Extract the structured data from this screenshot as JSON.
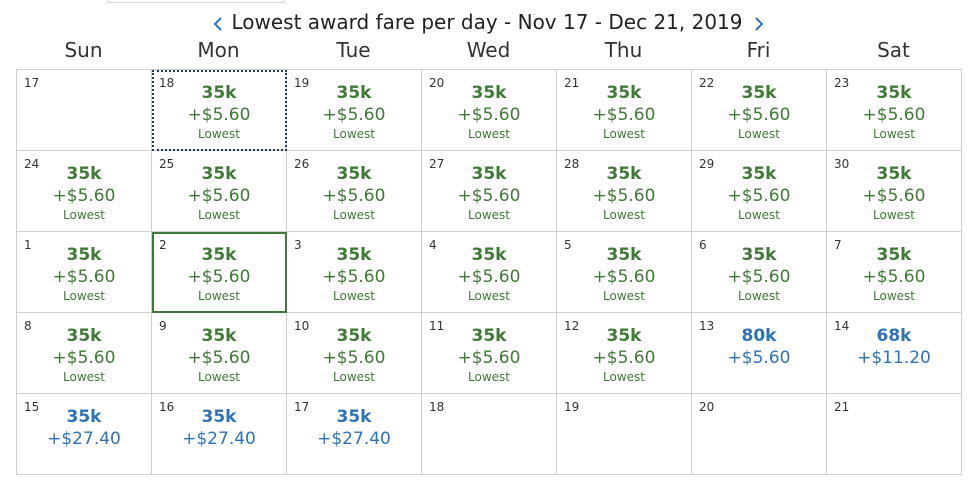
{
  "header": {
    "title": "Lowest award fare per day - Nov 17 - Dec 21, 2019",
    "prev_icon": "chevron-left-icon",
    "next_icon": "chevron-right-icon",
    "accent_color": "#2f73b6"
  },
  "weekdays": [
    "Sun",
    "Mon",
    "Tue",
    "Wed",
    "Thu",
    "Fri",
    "Sat"
  ],
  "colors": {
    "lowest": "#3f7a36",
    "regular": "#2f73b6",
    "selected_outline": "#3d7a3a",
    "focus_outline": "#1d3a66"
  },
  "calendar": {
    "weeks": [
      [
        {
          "day": "17"
        },
        {
          "day": "18",
          "miles": "35k",
          "tax": "+$5.60",
          "tag": "Lowest",
          "state": "focused"
        },
        {
          "day": "19",
          "miles": "35k",
          "tax": "+$5.60",
          "tag": "Lowest"
        },
        {
          "day": "20",
          "miles": "35k",
          "tax": "+$5.60",
          "tag": "Lowest"
        },
        {
          "day": "21",
          "miles": "35k",
          "tax": "+$5.60",
          "tag": "Lowest"
        },
        {
          "day": "22",
          "miles": "35k",
          "tax": "+$5.60",
          "tag": "Lowest"
        },
        {
          "day": "23",
          "miles": "35k",
          "tax": "+$5.60",
          "tag": "Lowest"
        }
      ],
      [
        {
          "day": "24",
          "miles": "35k",
          "tax": "+$5.60",
          "tag": "Lowest"
        },
        {
          "day": "25",
          "miles": "35k",
          "tax": "+$5.60",
          "tag": "Lowest"
        },
        {
          "day": "26",
          "miles": "35k",
          "tax": "+$5.60",
          "tag": "Lowest"
        },
        {
          "day": "27",
          "miles": "35k",
          "tax": "+$5.60",
          "tag": "Lowest"
        },
        {
          "day": "28",
          "miles": "35k",
          "tax": "+$5.60",
          "tag": "Lowest"
        },
        {
          "day": "29",
          "miles": "35k",
          "tax": "+$5.60",
          "tag": "Lowest"
        },
        {
          "day": "30",
          "miles": "35k",
          "tax": "+$5.60",
          "tag": "Lowest"
        }
      ],
      [
        {
          "day": "1",
          "miles": "35k",
          "tax": "+$5.60",
          "tag": "Lowest"
        },
        {
          "day": "2",
          "miles": "35k",
          "tax": "+$5.60",
          "tag": "Lowest",
          "state": "selected"
        },
        {
          "day": "3",
          "miles": "35k",
          "tax": "+$5.60",
          "tag": "Lowest"
        },
        {
          "day": "4",
          "miles": "35k",
          "tax": "+$5.60",
          "tag": "Lowest"
        },
        {
          "day": "5",
          "miles": "35k",
          "tax": "+$5.60",
          "tag": "Lowest"
        },
        {
          "day": "6",
          "miles": "35k",
          "tax": "+$5.60",
          "tag": "Lowest"
        },
        {
          "day": "7",
          "miles": "35k",
          "tax": "+$5.60",
          "tag": "Lowest"
        }
      ],
      [
        {
          "day": "8",
          "miles": "35k",
          "tax": "+$5.60",
          "tag": "Lowest"
        },
        {
          "day": "9",
          "miles": "35k",
          "tax": "+$5.60",
          "tag": "Lowest"
        },
        {
          "day": "10",
          "miles": "35k",
          "tax": "+$5.60",
          "tag": "Lowest"
        },
        {
          "day": "11",
          "miles": "35k",
          "tax": "+$5.60",
          "tag": "Lowest"
        },
        {
          "day": "12",
          "miles": "35k",
          "tax": "+$5.60",
          "tag": "Lowest"
        },
        {
          "day": "13",
          "miles": "80k",
          "tax": "+$5.60"
        },
        {
          "day": "14",
          "miles": "68k",
          "tax": "+$11.20"
        }
      ],
      [
        {
          "day": "15",
          "miles": "35k",
          "tax": "+$27.40"
        },
        {
          "day": "16",
          "miles": "35k",
          "tax": "+$27.40"
        },
        {
          "day": "17",
          "miles": "35k",
          "tax": "+$27.40"
        },
        {
          "day": "18"
        },
        {
          "day": "19"
        },
        {
          "day": "20"
        },
        {
          "day": "21"
        }
      ]
    ]
  }
}
